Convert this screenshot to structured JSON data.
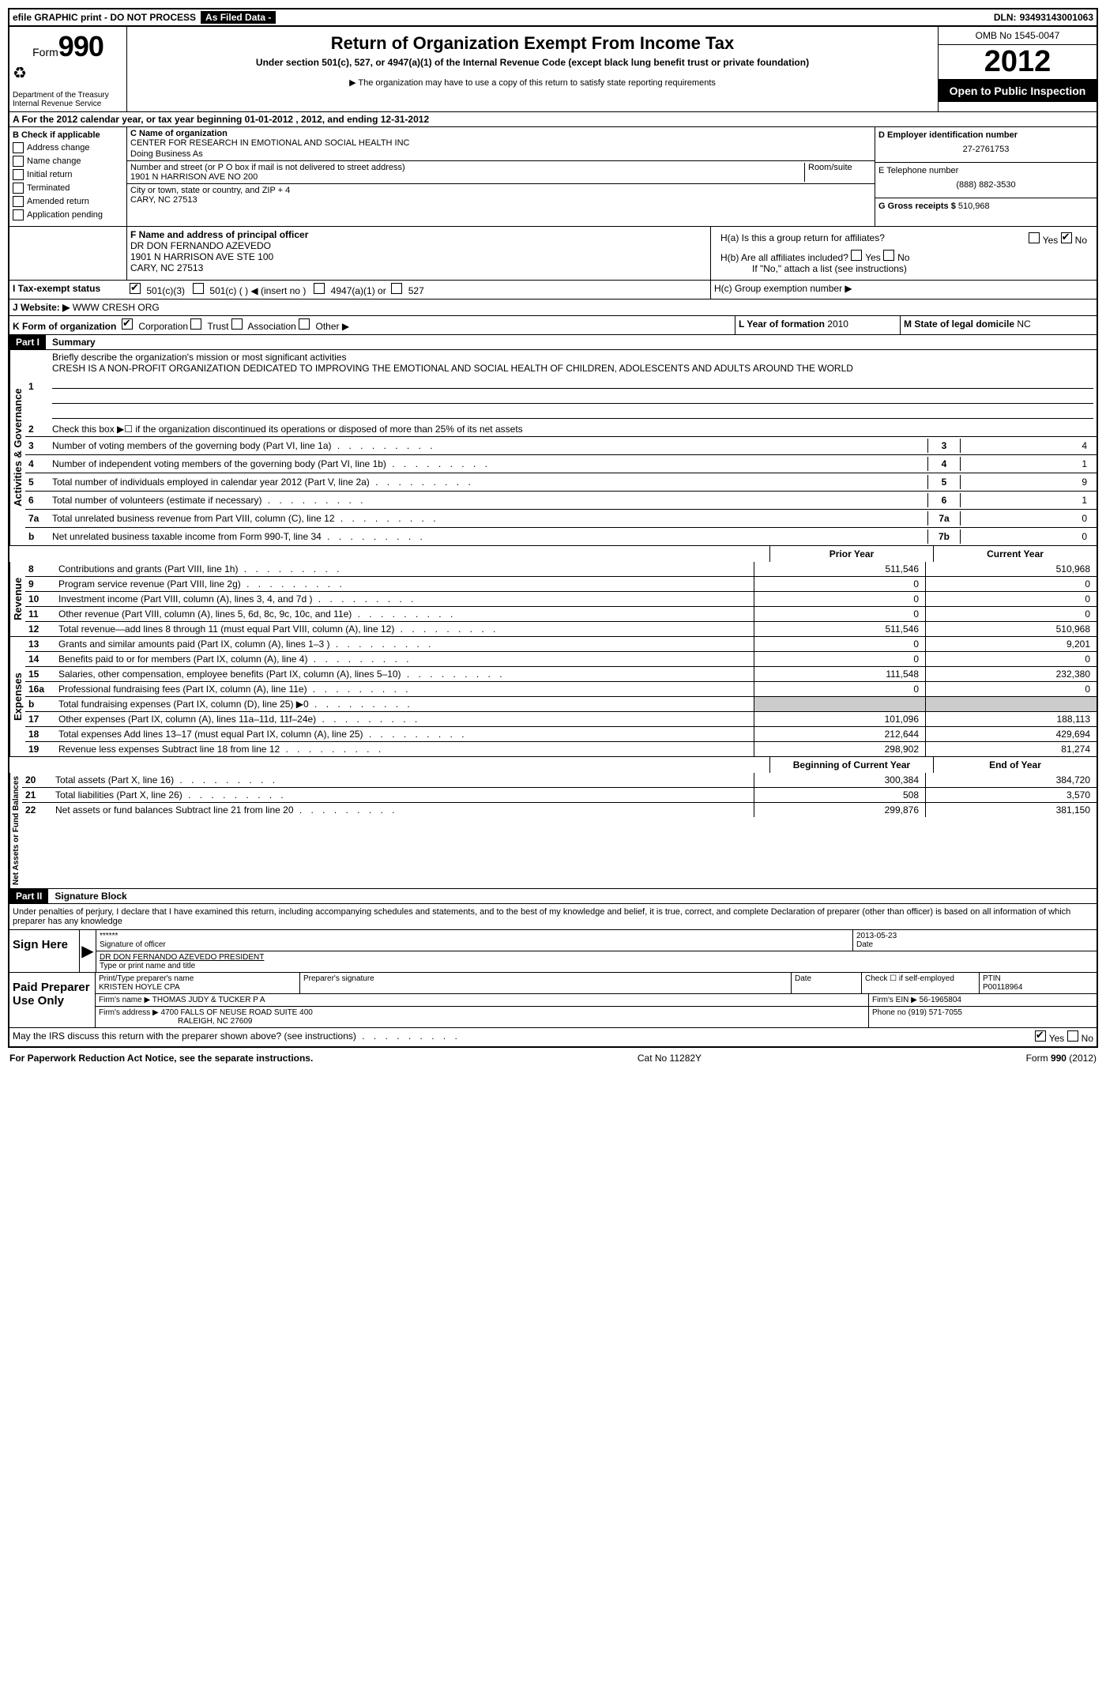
{
  "top_bar": {
    "efile": "efile GRAPHIC print - DO NOT PROCESS",
    "as_filed": "As Filed Data -",
    "dln_label": "DLN:",
    "dln": "93493143001063"
  },
  "header": {
    "form_label": "Form",
    "form_number": "990",
    "recycle": "♻",
    "dept1": "Department of the Treasury",
    "dept2": "Internal Revenue Service",
    "title": "Return of Organization Exempt From Income Tax",
    "subtitle": "Under section 501(c), 527, or 4947(a)(1) of the Internal Revenue Code (except black lung benefit trust or private foundation)",
    "note": "▶ The organization may have to use a copy of this return to satisfy state reporting requirements",
    "omb": "OMB No 1545-0047",
    "year": "2012",
    "open_public": "Open to Public Inspection"
  },
  "section_a": "A For the 2012 calendar year, or tax year beginning 01-01-2012    , 2012, and ending 12-31-2012",
  "section_b": {
    "label": "B Check if applicable",
    "items": [
      "Address change",
      "Name change",
      "Initial return",
      "Terminated",
      "Amended return",
      "Application pending"
    ]
  },
  "section_c": {
    "name_label": "C Name of organization",
    "name": "CENTER FOR RESEARCH IN EMOTIONAL AND SOCIAL HEALTH INC",
    "dba_label": "Doing Business As",
    "addr_label": "Number and street (or P O  box if mail is not delivered to street address)",
    "room_label": "Room/suite",
    "addr": "1901 N HARRISON AVE NO 200",
    "city_label": "City or town, state or country, and ZIP + 4",
    "city": "CARY, NC  27513"
  },
  "section_d": {
    "label": "D Employer identification number",
    "ein": "27-2761753",
    "phone_label": "E Telephone number",
    "phone": "(888) 882-3530",
    "gross_label": "G Gross receipts $",
    "gross": "510,968"
  },
  "section_f": {
    "label": "F  Name and address of principal officer",
    "name": "DR DON FERNANDO AZEVEDO",
    "addr": "1901 N HARRISON AVE STE 100",
    "city": "CARY, NC  27513"
  },
  "section_h": {
    "ha": "H(a)  Is this a group return for affiliates?",
    "hb": "H(b)  Are all affiliates included?",
    "hb_note": "If \"No,\" attach a list  (see instructions)",
    "hc": "H(c)   Group exemption number ▶"
  },
  "row_i": {
    "label": "I   Tax-exempt status",
    "opts": [
      "501(c)(3)",
      "501(c) (  ) ◀ (insert no )",
      "4947(a)(1) or",
      "527"
    ]
  },
  "row_j": {
    "label": "J  Website: ▶",
    "val": "WWW CRESH ORG"
  },
  "row_k": {
    "label": "K Form of organization",
    "opts": [
      "Corporation",
      "Trust",
      "Association",
      "Other ▶"
    ],
    "l_label": "L Year of formation",
    "l_val": "2010",
    "m_label": "M State of legal domicile",
    "m_val": "NC"
  },
  "part1": {
    "header": "Part I",
    "title": "Summary",
    "line1_label": "1",
    "line1_text": "Briefly describe the organization's mission or most significant activities",
    "mission": "CRESH IS A NON-PROFIT ORGANIZATION DEDICATED TO IMPROVING THE EMOTIONAL AND SOCIAL HEALTH OF CHILDREN, ADOLESCENTS AND ADULTS AROUND THE WORLD",
    "line2": "Check this box ▶☐ if the organization discontinued its operations or disposed of more than 25% of its net assets",
    "governance_label": "Activities & Governance",
    "gov_lines": [
      {
        "n": "3",
        "t": "Number of voting members of the governing body (Part VI, line 1a)",
        "b": "3",
        "v": "4"
      },
      {
        "n": "4",
        "t": "Number of independent voting members of the governing body (Part VI, line 1b)",
        "b": "4",
        "v": "1"
      },
      {
        "n": "5",
        "t": "Total number of individuals employed in calendar year 2012 (Part V, line 2a)",
        "b": "5",
        "v": "9"
      },
      {
        "n": "6",
        "t": "Total number of volunteers (estimate if necessary)",
        "b": "6",
        "v": "1"
      },
      {
        "n": "7a",
        "t": "Total unrelated business revenue from Part VIII, column (C), line 12",
        "b": "7a",
        "v": "0"
      },
      {
        "n": "b",
        "t": "Net unrelated business taxable income from Form 990-T, line 34",
        "b": "7b",
        "v": "0"
      }
    ],
    "prior_year": "Prior Year",
    "current_year": "Current Year",
    "revenue_label": "Revenue",
    "revenue_lines": [
      {
        "n": "8",
        "t": "Contributions and grants (Part VIII, line 1h)",
        "c1": "511,546",
        "c2": "510,968"
      },
      {
        "n": "9",
        "t": "Program service revenue (Part VIII, line 2g)",
        "c1": "0",
        "c2": "0"
      },
      {
        "n": "10",
        "t": "Investment income (Part VIII, column (A), lines 3, 4, and 7d )",
        "c1": "0",
        "c2": "0"
      },
      {
        "n": "11",
        "t": "Other revenue (Part VIII, column (A), lines 5, 6d, 8c, 9c, 10c, and 11e)",
        "c1": "0",
        "c2": "0"
      },
      {
        "n": "12",
        "t": "Total revenue—add lines 8 through 11 (must equal Part VIII, column (A), line 12)",
        "c1": "511,546",
        "c2": "510,968"
      }
    ],
    "expenses_label": "Expenses",
    "expense_lines": [
      {
        "n": "13",
        "t": "Grants and similar amounts paid (Part IX, column (A), lines 1–3 )",
        "c1": "0",
        "c2": "9,201"
      },
      {
        "n": "14",
        "t": "Benefits paid to or for members (Part IX, column (A), line 4)",
        "c1": "0",
        "c2": "0"
      },
      {
        "n": "15",
        "t": "Salaries, other compensation, employee benefits (Part IX, column (A), lines 5–10)",
        "c1": "111,548",
        "c2": "232,380"
      },
      {
        "n": "16a",
        "t": "Professional fundraising fees (Part IX, column (A), line 11e)",
        "c1": "0",
        "c2": "0"
      },
      {
        "n": "b",
        "t": "Total fundraising expenses (Part IX, column (D), line 25) ▶0",
        "c1": "",
        "c2": ""
      },
      {
        "n": "17",
        "t": "Other expenses (Part IX, column (A), lines 11a–11d, 11f–24e)",
        "c1": "101,096",
        "c2": "188,113"
      },
      {
        "n": "18",
        "t": "Total expenses  Add lines 13–17 (must equal Part IX, column (A), line 25)",
        "c1": "212,644",
        "c2": "429,694"
      },
      {
        "n": "19",
        "t": "Revenue less expenses  Subtract line 18 from line 12",
        "c1": "298,902",
        "c2": "81,274"
      }
    ],
    "net_label": "Net Assets or Fund Balances",
    "begin_year": "Beginning of Current Year",
    "end_year": "End of Year",
    "net_lines": [
      {
        "n": "20",
        "t": "Total assets (Part X, line 16)",
        "c1": "300,384",
        "c2": "384,720"
      },
      {
        "n": "21",
        "t": "Total liabilities (Part X, line 26)",
        "c1": "508",
        "c2": "3,570"
      },
      {
        "n": "22",
        "t": "Net assets or fund balances  Subtract line 21 from line 20",
        "c1": "299,876",
        "c2": "381,150"
      }
    ]
  },
  "part2": {
    "header": "Part II",
    "title": "Signature Block",
    "declaration": "Under penalties of perjury, I declare that I have examined this return, including accompanying schedules and statements, and to the best of my knowledge and belief, it is true, correct, and complete  Declaration of preparer (other than officer) is based on all information of which preparer has any knowledge",
    "sign_here": "Sign Here",
    "sig_stars": "******",
    "sig_officer": "Signature of officer",
    "sig_date": "2013-05-23",
    "date_label": "Date",
    "officer_name": "DR DON FERNANDO AZEVEDO PRESIDENT",
    "type_label": "Type or print name and title",
    "paid_label": "Paid Preparer Use Only",
    "preparer_name_label": "Print/Type preparer's name",
    "preparer_name": "KRISTEN HOYLE CPA",
    "preparer_sig_label": "Preparer's signature",
    "check_label": "Check ☐ if self-employed",
    "ptin_label": "PTIN",
    "ptin": "P00118964",
    "firm_name_label": "Firm's name   ▶",
    "firm_name": "THOMAS JUDY & TUCKER P A",
    "firm_ein_label": "Firm's EIN ▶",
    "firm_ein": "56-1965804",
    "firm_addr_label": "Firm's address ▶",
    "firm_addr": "4700 FALLS OF NEUSE ROAD SUITE 400",
    "firm_city": "RALEIGH, NC  27609",
    "phone_label": "Phone no",
    "phone": "(919) 571-7055",
    "discuss": "May the IRS discuss this return with the preparer shown above? (see instructions)"
  },
  "footer": {
    "left": "For Paperwork Reduction Act Notice, see the separate instructions.",
    "center": "Cat No  11282Y",
    "right": "Form 990 (2012)"
  }
}
